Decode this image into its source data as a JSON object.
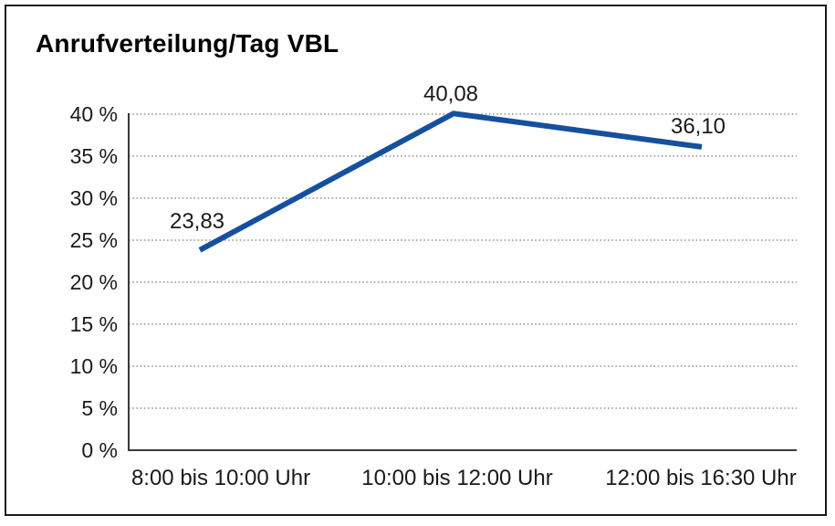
{
  "chart_data": {
    "type": "line",
    "title": "Anrufverteilung/Tag VBL",
    "categories": [
      "8:00 bis 10:00 Uhr",
      "10:00 bis 12:00 Uhr",
      "12:00 bis 16:30 Uhr"
    ],
    "series": [
      {
        "values": [
          23.83,
          40.08,
          36.1
        ],
        "point_labels": [
          "23,83",
          "40,08",
          "36,10"
        ],
        "color": "#15509E"
      }
    ],
    "ylim": [
      0,
      40
    ],
    "yticks": [
      0,
      5,
      10,
      15,
      20,
      25,
      30,
      35,
      40
    ],
    "ytick_labels": [
      "0 %",
      "5 %",
      "10 %",
      "15 %",
      "20 %",
      "25 %",
      "30 %",
      "35 %",
      "40 %"
    ],
    "xlabel": "",
    "ylabel": "",
    "grid": "horizontal dotted",
    "legend_position": "none",
    "axis_color": "#3a3a3a",
    "grid_color": "#7f7f7f",
    "text_color": "#1a1a1a",
    "border_color": "#1a1a1a",
    "background": "#ffffff"
  }
}
